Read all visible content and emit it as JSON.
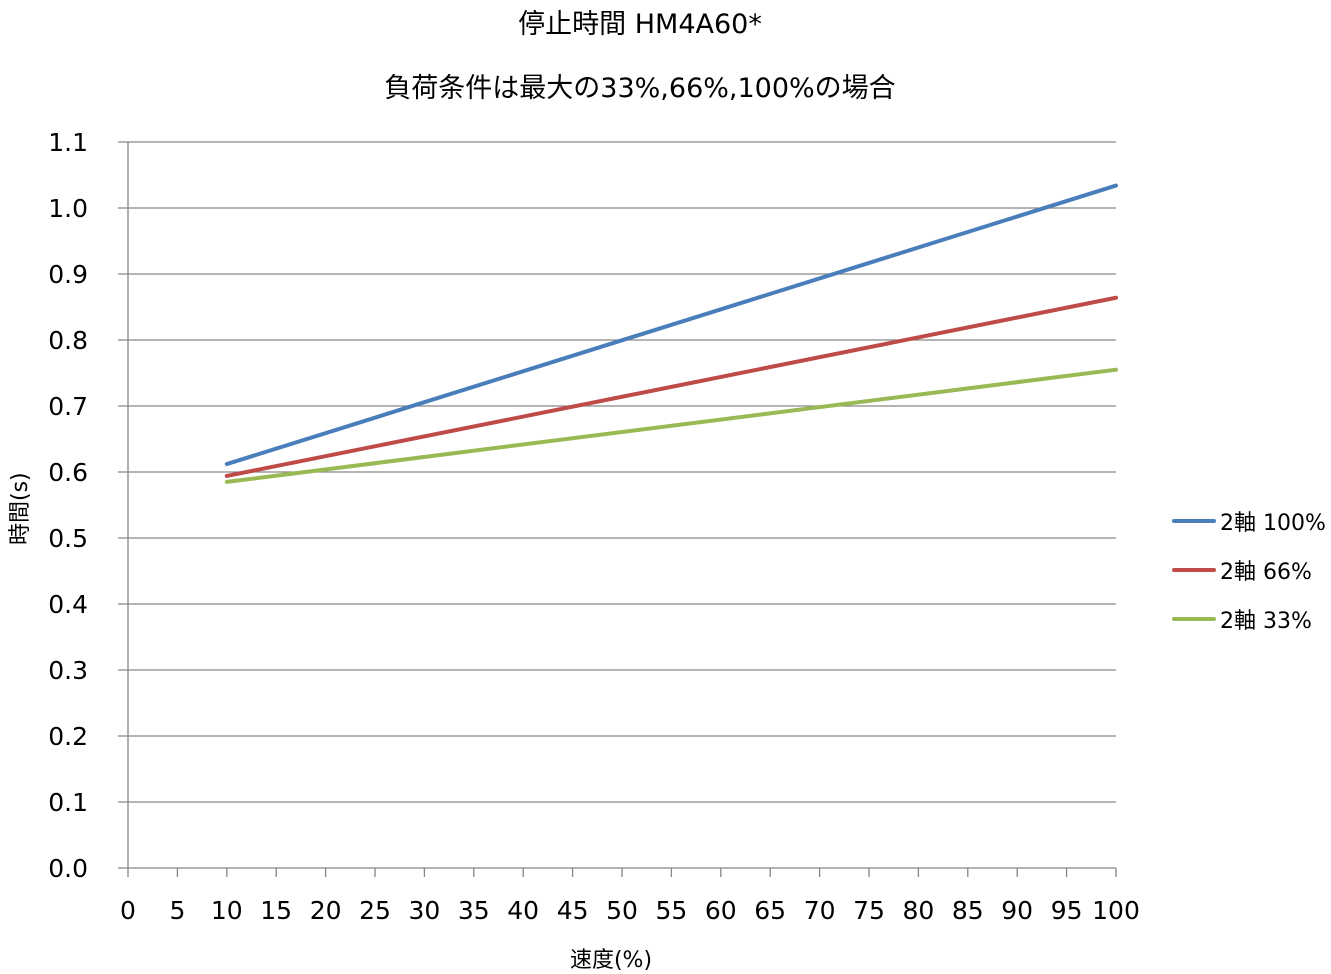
{
  "chart_data": {
    "type": "line",
    "title": "停止時間 HM4A60*",
    "subtitle": "負荷条件は最大の33%,66%,100%の場合",
    "xlabel": "速度(%)",
    "ylabel": "時間(s)",
    "xlim": [
      0,
      100
    ],
    "ylim": [
      0,
      1.1
    ],
    "x_ticks": [
      "0",
      "5",
      "10",
      "15",
      "20",
      "25",
      "30",
      "35",
      "40",
      "45",
      "50",
      "55",
      "60",
      "65",
      "70",
      "75",
      "80",
      "85",
      "90",
      "95",
      "100"
    ],
    "y_ticks": [
      "0.0",
      "0.1",
      "0.2",
      "0.3",
      "0.4",
      "0.5",
      "0.6",
      "0.7",
      "0.8",
      "0.9",
      "1.0",
      "1.1"
    ],
    "grid": true,
    "legend_position": "right",
    "x": [
      10,
      100
    ],
    "series": [
      {
        "name": "2軸 100%",
        "color": "#4a7ebb",
        "values": [
          0.612,
          1.034
        ]
      },
      {
        "name": "2軸 66%",
        "color": "#be4b48",
        "values": [
          0.594,
          0.864
        ]
      },
      {
        "name": "2軸 33%",
        "color": "#98b954",
        "values": [
          0.585,
          0.755
        ]
      }
    ]
  }
}
